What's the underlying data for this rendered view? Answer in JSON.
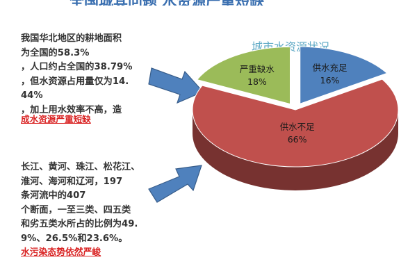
{
  "page": {
    "top_title": "全国城其问题  水资源严重短缺",
    "paragraph1": [
      "我国华北地区的耕地面积",
      "为全国的58.3%",
      "，人口约占全国的38.79%",
      "，但水资源占用量仅为14.",
      "44%",
      "，加上用水效率不高，造"
    ],
    "paragraph1_highlight": "成水资源严重短缺",
    "paragraph2": [
      "长江、黄河、珠江、松花江、",
      "淮河、海河和辽河，197",
      "条河流中的407",
      "个断面，一至三类、四五类",
      "和劣五类水所占的比例为49.",
      "9%、26.5%和23.6%。"
    ],
    "paragraph2_highlight": "水污染态势依然严峻"
  },
  "chart_data": {
    "type": "pie",
    "title": "城市水资源状况",
    "slices": [
      {
        "label": "供水充足",
        "value": 16,
        "value_label": "16%",
        "color": "#4f81bd"
      },
      {
        "label": "供水不足",
        "value": 66,
        "value_label": "66%",
        "color": "#c0504d"
      },
      {
        "label": "严重缺水",
        "value": 18,
        "value_label": "18%",
        "color": "#9bbb59"
      }
    ],
    "style": "3d",
    "legend": "none"
  }
}
